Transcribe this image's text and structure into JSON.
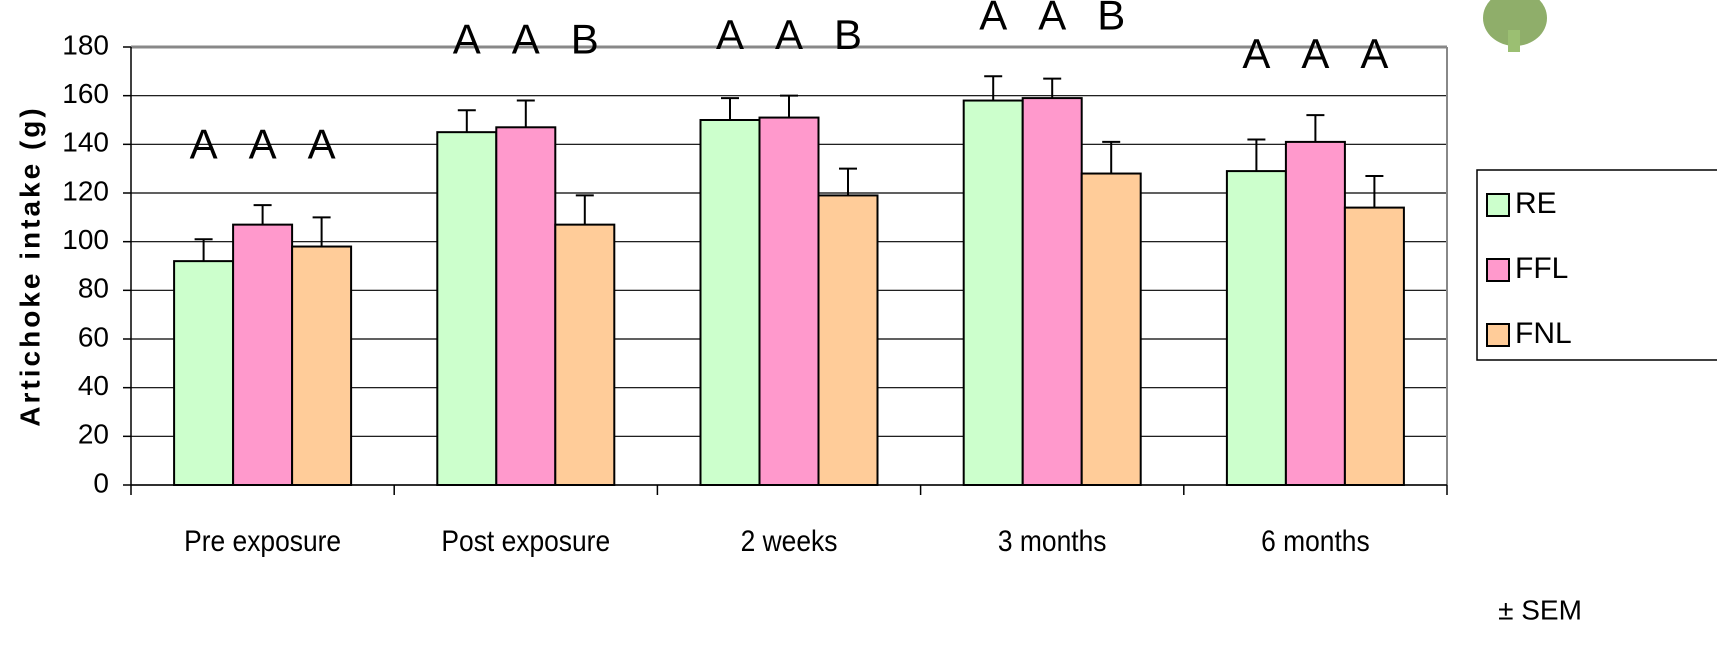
{
  "chart_data": {
    "type": "bar",
    "y_label": "Artichoke intake (g)",
    "categories": [
      "Pre exposure",
      "Post exposure",
      "2 weeks",
      "3 months",
      "6 months"
    ],
    "series": [
      {
        "name": "RE",
        "color": "#ccffcc",
        "values": [
          92,
          145,
          150,
          158,
          129
        ],
        "errors": [
          9,
          9,
          9,
          10,
          13
        ]
      },
      {
        "name": "FFL",
        "color": "#ff99cc",
        "values": [
          107,
          147,
          151,
          159,
          141
        ],
        "errors": [
          8,
          11,
          9,
          8,
          11
        ]
      },
      {
        "name": "FNL",
        "color": "#ffcc99",
        "values": [
          98,
          107,
          119,
          128,
          114
        ],
        "errors": [
          12,
          12,
          11,
          13,
          13
        ]
      }
    ],
    "letters": [
      [
        "A",
        "A",
        "A"
      ],
      [
        "A",
        "A",
        "B"
      ],
      [
        "A",
        "A",
        "B"
      ],
      [
        "A",
        "A",
        "B"
      ],
      [
        "A",
        "A",
        "A"
      ]
    ],
    "note": "± SEM",
    "ylim": [
      0,
      180
    ],
    "yticks": [
      0,
      20,
      40,
      60,
      80,
      100,
      120,
      140,
      160,
      180
    ],
    "grid": true
  }
}
